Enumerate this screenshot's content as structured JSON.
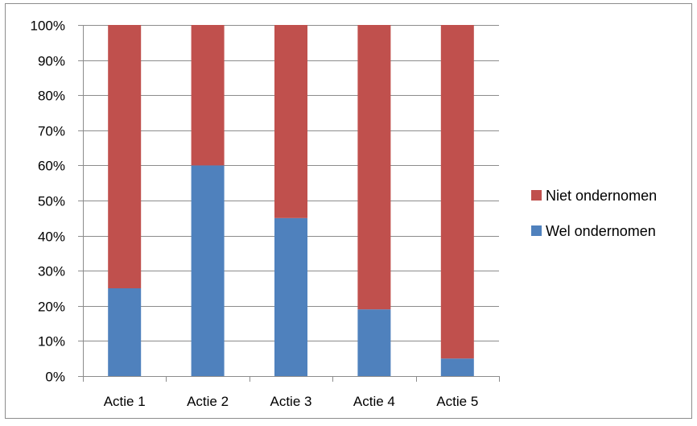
{
  "chart_data": {
    "type": "bar",
    "stacked": true,
    "title": "",
    "xlabel": "",
    "ylabel": "",
    "categories": [
      "Actie 1",
      "Actie 2",
      "Actie 3",
      "Actie 4",
      "Actie 5"
    ],
    "series": [
      {
        "name": "Wel ondernomen",
        "values": [
          25,
          60,
          45,
          19,
          5
        ],
        "color": "#4F81BD"
      },
      {
        "name": "Niet ondernomen",
        "values": [
          75,
          40,
          55,
          81,
          95
        ],
        "color": "#C0504D"
      }
    ],
    "ylim": [
      0,
      100
    ],
    "yticks": [
      "0%",
      "10%",
      "20%",
      "30%",
      "40%",
      "50%",
      "60%",
      "70%",
      "80%",
      "90%",
      "100%"
    ],
    "grid": true,
    "legend": {
      "placement": "right",
      "entries": [
        "Niet ondernomen",
        "Wel ondernomen"
      ]
    }
  }
}
